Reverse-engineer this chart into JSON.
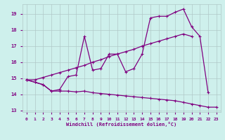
{
  "xlabel": "Windchill (Refroidissement éolien,°C)",
  "background_color": "#cef0ec",
  "line_color": "#800080",
  "grid_color": "#b0c8c8",
  "text_color": "#800080",
  "x": [
    0,
    1,
    2,
    3,
    4,
    5,
    6,
    7,
    8,
    9,
    10,
    11,
    12,
    13,
    14,
    15,
    16,
    17,
    18,
    19,
    20,
    21,
    22,
    23
  ],
  "line_zigzag": [
    14.9,
    14.75,
    14.6,
    14.2,
    14.3,
    15.1,
    15.2,
    17.6,
    15.5,
    15.6,
    16.5,
    16.5,
    15.4,
    15.6,
    16.5,
    18.75,
    18.85,
    18.85,
    19.1,
    19.3,
    18.2,
    17.6,
    14.1,
    null
  ],
  "line_rising": [
    14.9,
    14.9,
    15.05,
    15.2,
    15.35,
    15.5,
    15.65,
    15.8,
    16.0,
    16.15,
    16.35,
    16.5,
    16.65,
    16.8,
    17.0,
    17.15,
    17.3,
    17.45,
    17.6,
    17.75,
    17.6,
    null,
    null,
    null
  ],
  "line_bottom": [
    14.9,
    14.75,
    14.6,
    14.2,
    14.2,
    14.2,
    14.15,
    14.2,
    14.1,
    14.05,
    14.0,
    13.95,
    13.9,
    13.85,
    13.8,
    13.75,
    13.7,
    13.65,
    13.6,
    13.5,
    13.4,
    13.3,
    13.2,
    13.2
  ],
  "ylim": [
    12.9,
    19.6
  ],
  "xlim": [
    -0.5,
    23.5
  ],
  "yticks": [
    13,
    14,
    15,
    16,
    17,
    18,
    19
  ],
  "xticks": [
    0,
    1,
    2,
    3,
    4,
    5,
    6,
    7,
    8,
    9,
    10,
    11,
    12,
    13,
    14,
    15,
    16,
    17,
    18,
    19,
    20,
    21,
    22,
    23
  ]
}
